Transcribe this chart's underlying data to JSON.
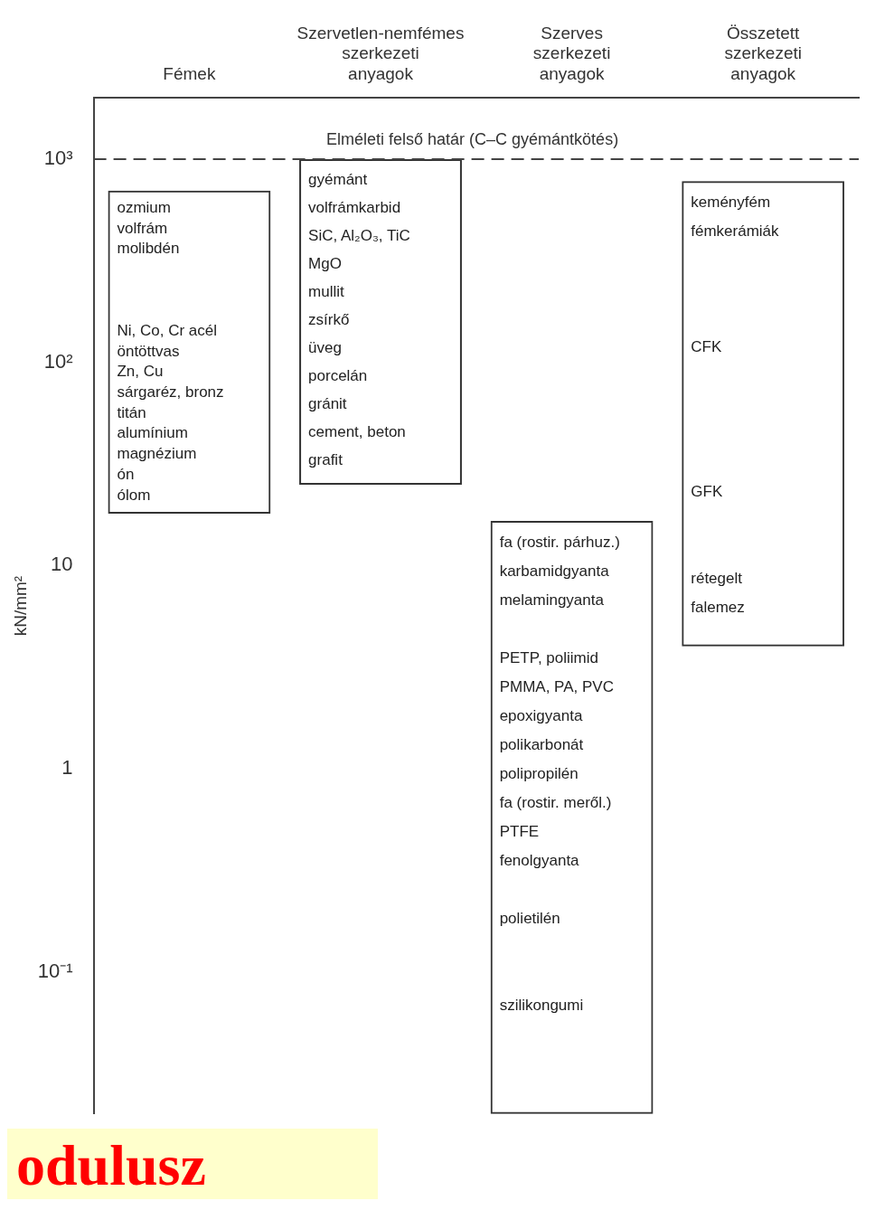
{
  "chart_data": {
    "type": "bar",
    "categories": [
      "Fémek",
      "Szervetlen-nemfémes szerkezeti anyagok",
      "Szerves szerkezeti anyagok",
      "Összetett szerkezeti anyagok"
    ],
    "base": [
      18,
      25,
      0.02,
      4
    ],
    "values": [
      682,
      975,
      16.58,
      776
    ],
    "color": "#333333",
    "log": true,
    "grid": false,
    "legend": false,
    "ylabel": "kN/mm²",
    "ylim": [
      0.02,
      2000
    ],
    "yticks": [
      {
        "value": 0.1,
        "label": "10⁻¹"
      },
      1,
      10,
      {
        "value": 100,
        "label": "10²"
      },
      {
        "value": 1000,
        "label": "10³"
      }
    ],
    "ref_lines": [
      {
        "axis": "y",
        "value": 1000,
        "label": "Elméleti felső határ (C–C gyémántkötés)",
        "line_style": "dashed"
      }
    ],
    "annotations": [
      "ozmium\nvolfrám\nmolibdén\n\n\n\nNi, Co, Cr acél\nöntöttvas\nZn, Cu\nsárgaréz, bronz\ntitán\nalumínium\nmagnézium\nón\nólom",
      "gyémánt\nvolfrámkarbid\nSiC, Al₂O₃, TiC\nMgO\nmullit\nzsírkő\nüveg\nporcelán\ngránit\ncement, beton\ngrafit",
      "fa (rostir. párhuz.)\nkarbamidgyanta\nmelamingyanta\n\nPETP, poliimid\nPMMA, PA, PVC\nepoxigyanta\npolikarbonát\npolipropilén\nfa (rostir. meről.)\nPTFE\nfenolgyanta\n\npolietilén\n\n\nszilikongumi",
      "keményfém\nfémkerámiák\n\n\n\nCFK\n\n\n\n\nGFK\n\n\nrétegelt\nfalemez",
      "odulusz"
    ]
  }
}
